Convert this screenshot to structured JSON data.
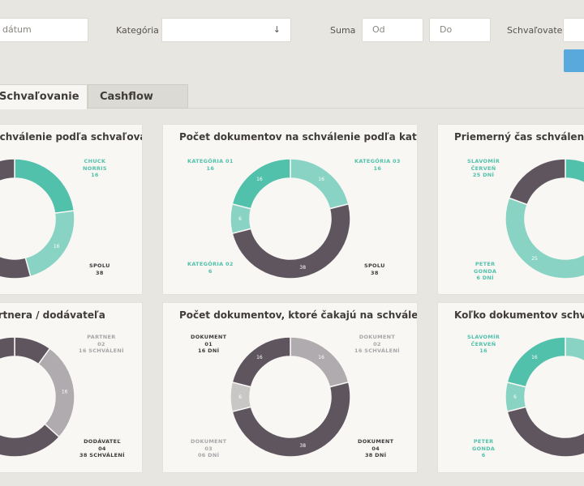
{
  "filters": {
    "date_placeholder": "dátum",
    "category_label": "Kategória",
    "category_arrow": "↓",
    "sum_label": "Suma",
    "sum_from_placeholder": "Od",
    "sum_to_placeholder": "Do",
    "approver_label": "Schvaľovateľ"
  },
  "tabs": [
    {
      "label": "Schvaľovanie",
      "active": true
    },
    {
      "label": "Cashflow",
      "active": false
    }
  ],
  "colors": {
    "teal": "#52c1ab",
    "light_teal": "#88d3c3",
    "dark": "#5f555f",
    "gray": "#afabaf",
    "light_gray": "#c9c6c6",
    "accent_button": "#5aa9dc"
  },
  "cards": [
    {
      "title": "Schválenie podľa schvaľovateľa",
      "labels": [
        {
          "lines": [
            "CHUCK",
            "NORRIS",
            "16"
          ],
          "tone": "teal"
        },
        {
          "lines": [
            "SPOLU",
            "38"
          ],
          "tone": "dark"
        }
      ],
      "segments": [
        {
          "value": 16,
          "color": "teal",
          "label": ""
        },
        {
          "value": 16,
          "color": "light_teal",
          "label": "16"
        },
        {
          "value": 38,
          "color": "dark",
          "label": "38"
        }
      ]
    },
    {
      "title": "Počet dokumentov na schválenie podľa kategórie",
      "labels": [
        {
          "lines": [
            "KATEGÓRIA 01",
            "16"
          ],
          "tone": "teal"
        },
        {
          "lines": [
            "KATEGÓRIA 03",
            "16"
          ],
          "tone": "teal"
        },
        {
          "lines": [
            "KATEGÓRIA 02",
            "6"
          ],
          "tone": "teal"
        },
        {
          "lines": [
            "SPOLU",
            "38"
          ],
          "tone": "dark"
        }
      ],
      "segments": [
        {
          "value": 16,
          "color": "light_teal",
          "label": "16"
        },
        {
          "value": 38,
          "color": "dark",
          "label": "38"
        },
        {
          "value": 6,
          "color": "light_teal",
          "label": "6"
        },
        {
          "value": 16,
          "color": "teal",
          "label": "16"
        }
      ]
    },
    {
      "title": "Priemerný čas schválenia podľa schvaľovateľa",
      "labels": [
        {
          "lines": [
            "SLAVOMÍR",
            "ČERVEŇ",
            "25 DNÍ"
          ],
          "tone": "teal"
        },
        {
          "lines": [
            "PETER",
            "GONDA",
            "6 DNÍ"
          ],
          "tone": "teal"
        }
      ],
      "segments": [
        {
          "value": 25,
          "color": "teal",
          "label": "25"
        },
        {
          "value": 25,
          "color": "light_teal",
          "label": "25"
        },
        {
          "value": 12,
          "color": "dark",
          "label": ""
        }
      ]
    },
    {
      "title": "Partnera / dodávateľa",
      "labels": [
        {
          "lines": [
            "PARTNER",
            "02",
            "16 SCHVÁLENÍ"
          ],
          "tone": "gray"
        },
        {
          "lines": [
            "DODÁVATEĽ",
            "04",
            "38 SCHVÁLENÍ"
          ],
          "tone": "dark"
        }
      ],
      "segments": [
        {
          "value": 6,
          "color": "dark",
          "label": ""
        },
        {
          "value": 16,
          "color": "gray",
          "label": "16"
        },
        {
          "value": 38,
          "color": "dark",
          "label": "38"
        }
      ]
    },
    {
      "title": "Počet dokumentov, ktoré čakajú na schválenie",
      "labels": [
        {
          "lines": [
            "DOKUMENT",
            "01",
            "16 DNÍ"
          ],
          "tone": "dark"
        },
        {
          "lines": [
            "DOKUMENT",
            "02",
            "16 SCHVÁLENÍ"
          ],
          "tone": "gray"
        },
        {
          "lines": [
            "DOKUMENT",
            "03",
            "06 DNÍ"
          ],
          "tone": "gray"
        },
        {
          "lines": [
            "DOKUMENT",
            "04",
            "38 DNÍ"
          ],
          "tone": "dark"
        }
      ],
      "segments": [
        {
          "value": 16,
          "color": "gray",
          "label": "16"
        },
        {
          "value": 38,
          "color": "dark",
          "label": "38"
        },
        {
          "value": 6,
          "color": "light_gray",
          "label": "6"
        },
        {
          "value": 16,
          "color": "dark",
          "label": "16"
        }
      ]
    },
    {
      "title": "Koľko dokumentov schválených podľa schvaľovateľa",
      "labels": [
        {
          "lines": [
            "SLAVOMÍR",
            "ČERVEŇ",
            "16"
          ],
          "tone": "teal"
        },
        {
          "lines": [
            "PETER",
            "GONDA",
            "6"
          ],
          "tone": "teal"
        }
      ],
      "segments": [
        {
          "value": 16,
          "color": "light_teal",
          "label": ""
        },
        {
          "value": 38,
          "color": "dark",
          "label": ""
        },
        {
          "value": 6,
          "color": "light_teal",
          "label": "6"
        },
        {
          "value": 16,
          "color": "teal",
          "label": "16"
        }
      ]
    }
  ]
}
